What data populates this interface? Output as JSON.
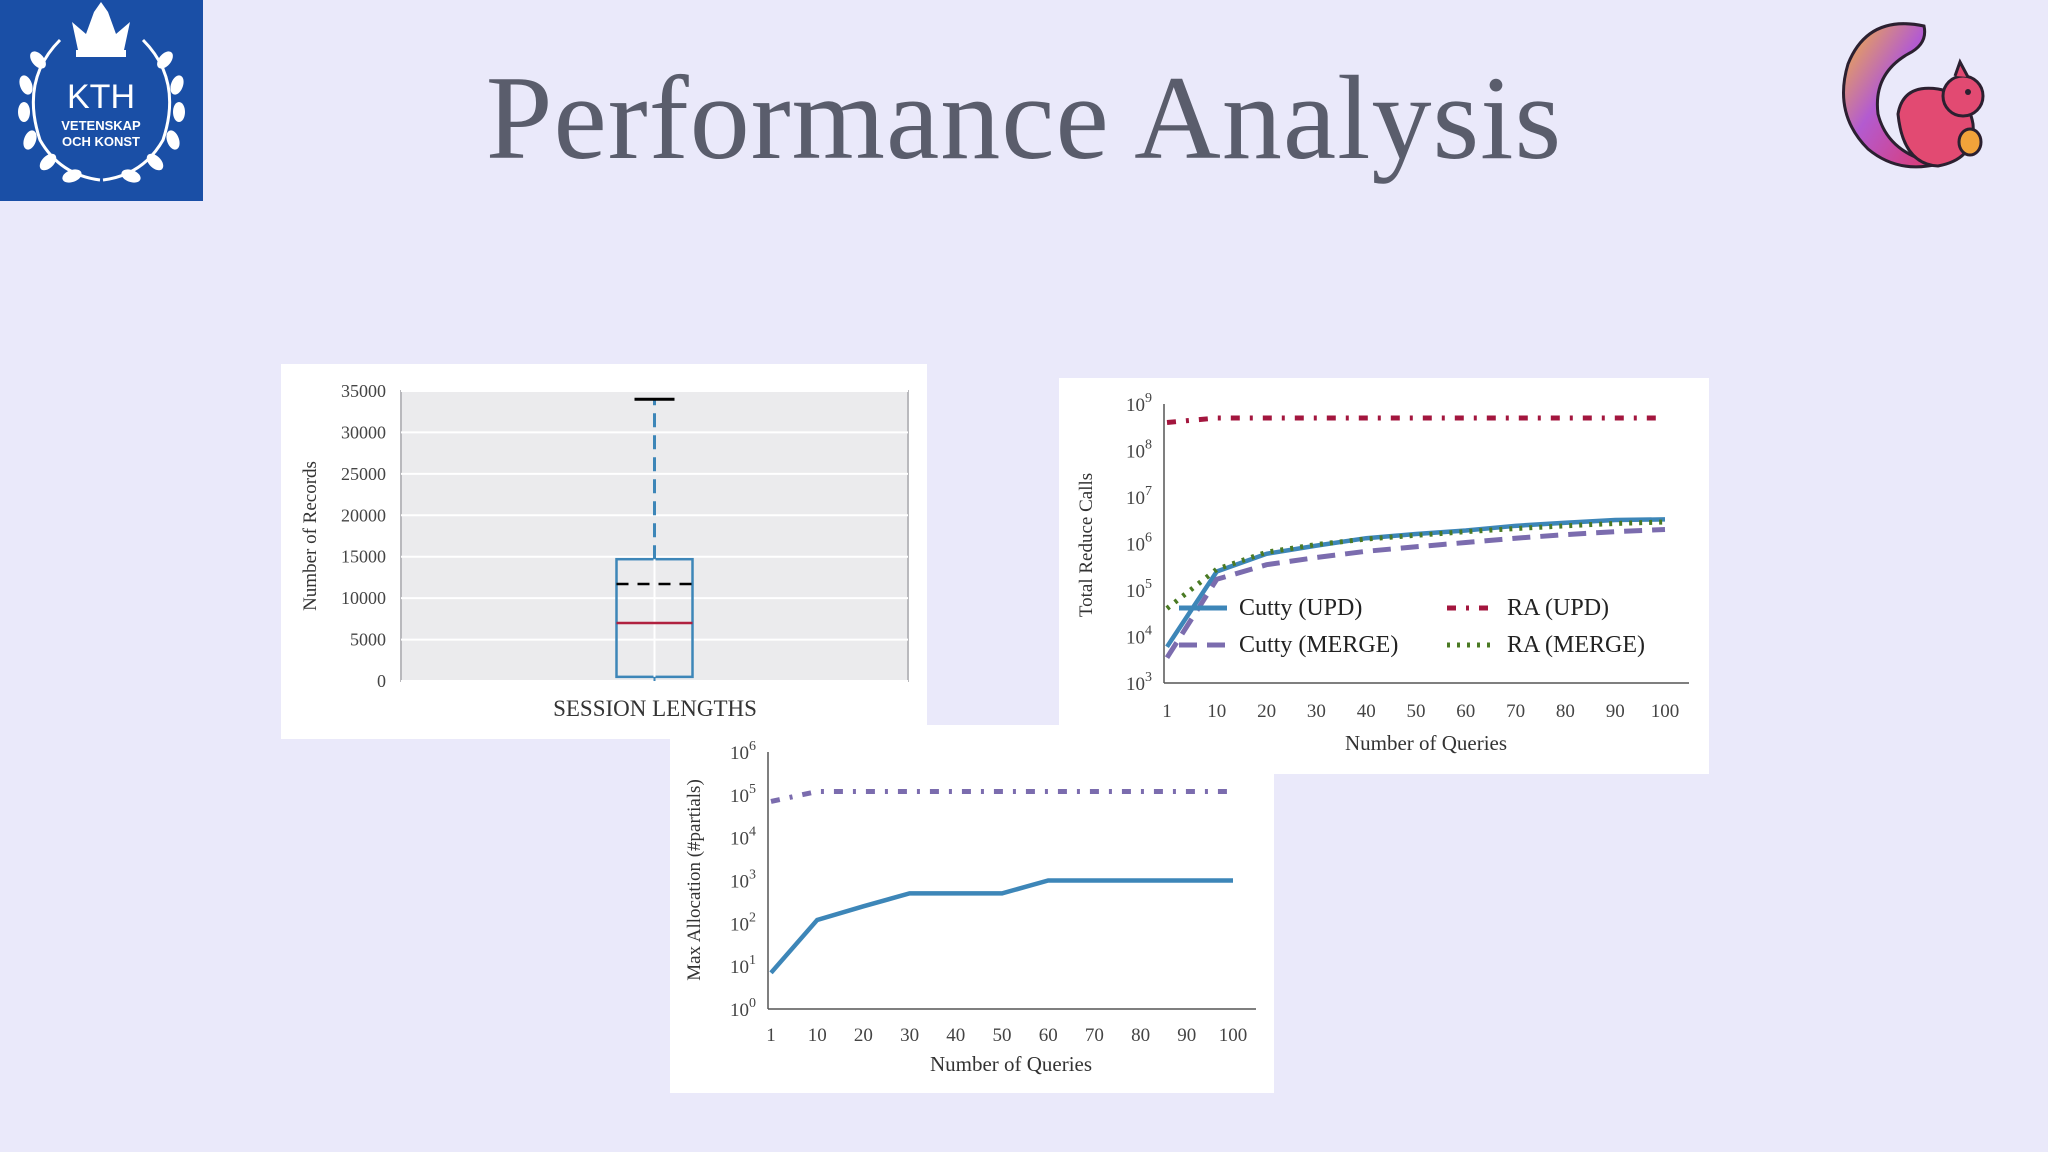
{
  "slide": {
    "title": "Performance Analysis",
    "kth_logo": {
      "line1": "KTH",
      "line2": "VETENSKAP",
      "line3": "OCH KONST"
    },
    "flink_logo_icon": "squirrel-logo-icon"
  },
  "chart_data": [
    {
      "id": "box",
      "type": "box",
      "categories": [
        "SESSION LENGTHS"
      ],
      "xlabel": "SESSION LENGTHS",
      "ylabel": "Number of Records",
      "ylim": [
        0,
        35000
      ],
      "yticks": [
        "0",
        "5000",
        "10000",
        "15000",
        "20000",
        "25000",
        "30000",
        "35000"
      ],
      "box": {
        "min": 0,
        "q1": 500,
        "median": 7000,
        "mean": 11700,
        "q3": 14700,
        "max": 34000
      },
      "grid": true,
      "colors": {
        "box": "#3d86b8",
        "median": "#b0213f",
        "mean": "#000000",
        "bg": "#ebebed"
      }
    },
    {
      "id": "reduce",
      "type": "line",
      "xlabel": "Number of Queries",
      "ylabel": "Total Reduce Calls",
      "yscale": "log",
      "x": [
        1,
        10,
        20,
        30,
        40,
        50,
        60,
        70,
        80,
        90,
        100
      ],
      "xticks": [
        "1",
        "10",
        "20",
        "30",
        "40",
        "50",
        "60",
        "70",
        "80",
        "90",
        "100"
      ],
      "yticks_exp": [
        "3",
        "4",
        "5",
        "6",
        "7",
        "8",
        "9"
      ],
      "ylim": [
        1000,
        1000000000
      ],
      "legend": "center-left",
      "series": [
        {
          "name": "Cutty (UPD)",
          "style": "solid",
          "color": "#3d86b8",
          "values": [
            6000,
            250000,
            600000,
            900000,
            1300000,
            1600000,
            1900000,
            2400000,
            2800000,
            3200000,
            3300000
          ]
        },
        {
          "name": "RA (UPD)",
          "style": "dashdot",
          "color": "#a3163e",
          "values": [
            400000000,
            500000000,
            500000000,
            500000000,
            500000000,
            500000000,
            500000000,
            500000000,
            500000000,
            500000000,
            500000000
          ]
        },
        {
          "name": "Cutty (MERGE)",
          "style": "dashed",
          "color": "#7b6cae",
          "values": [
            3500,
            170000,
            350000,
            500000,
            680000,
            850000,
            1050000,
            1300000,
            1550000,
            1800000,
            2000000
          ]
        },
        {
          "name": "RA (MERGE)",
          "style": "dotted",
          "color": "#4a7a23",
          "values": [
            40000,
            280000,
            650000,
            950000,
            1250000,
            1500000,
            1800000,
            2100000,
            2400000,
            2700000,
            2900000
          ]
        }
      ]
    },
    {
      "id": "alloc",
      "type": "line",
      "xlabel": "Number of Queries",
      "ylabel": "Max Allocation (#partials)",
      "yscale": "log",
      "x": [
        1,
        10,
        20,
        30,
        40,
        50,
        60,
        70,
        80,
        90,
        100
      ],
      "xticks": [
        "1",
        "10",
        "20",
        "30",
        "40",
        "50",
        "60",
        "70",
        "80",
        "90",
        "100"
      ],
      "yticks_exp": [
        "0",
        "1",
        "2",
        "3",
        "4",
        "5",
        "6"
      ],
      "ylim": [
        1,
        1000000
      ],
      "series": [
        {
          "name": "",
          "style": "solid",
          "color": "#3d86b8",
          "values": [
            7,
            120,
            250,
            500,
            500,
            500,
            1000,
            1000,
            1000,
            1000,
            1000
          ]
        },
        {
          "name": "",
          "style": "dashdot",
          "color": "#7b6cae",
          "values": [
            70000,
            120000,
            120000,
            120000,
            120000,
            120000,
            120000,
            120000,
            120000,
            120000,
            120000
          ]
        }
      ]
    }
  ]
}
